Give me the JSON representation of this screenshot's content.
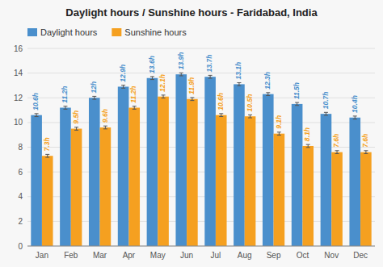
{
  "chart_data": {
    "type": "bar",
    "title": "Daylight hours / Sunshine hours - Faridabad, India",
    "categories": [
      "Jan",
      "Feb",
      "Mar",
      "Apr",
      "May",
      "Jun",
      "Jul",
      "Aug",
      "Sep",
      "Oct",
      "Nov",
      "Dec"
    ],
    "series": [
      {
        "name": "Daylight hours",
        "color": "#4a8fcc",
        "values": [
          10.6,
          11.2,
          12.0,
          12.9,
          13.6,
          13.9,
          13.7,
          13.1,
          12.3,
          11.5,
          10.7,
          10.4
        ],
        "value_labels": [
          "10.6h",
          "11.2h",
          "12h",
          "12.9h",
          "13.6h",
          "13.9h",
          "13.7h",
          "13.1h",
          "12.3h",
          "11.5h",
          "10.7h",
          "10.4h"
        ],
        "errors": [
          0.12,
          0.12,
          0.12,
          0.12,
          0.12,
          0.12,
          0.12,
          0.12,
          0.12,
          0.12,
          0.12,
          0.12
        ]
      },
      {
        "name": "Sunshine hours",
        "color": "#f5a020",
        "values": [
          7.3,
          9.5,
          9.6,
          11.2,
          12.1,
          11.9,
          10.6,
          10.5,
          9.1,
          8.1,
          7.6,
          7.6
        ],
        "value_labels": [
          "7.3h",
          "9.5h",
          "9.6h",
          "11.2h",
          "12.1h",
          "11.9h",
          "10.6h",
          "10.5h",
          "9.1h",
          "8.1h",
          "7.6h",
          "7.6h"
        ],
        "errors": [
          0.12,
          0.12,
          0.12,
          0.12,
          0.12,
          0.12,
          0.12,
          0.12,
          0.12,
          0.12,
          0.12,
          0.12
        ]
      }
    ],
    "ylim": [
      0,
      16
    ],
    "yticks": [
      0,
      2,
      4,
      6,
      8,
      10,
      12,
      14,
      16
    ],
    "grid": true,
    "legend": "top",
    "data_labels": true
  }
}
